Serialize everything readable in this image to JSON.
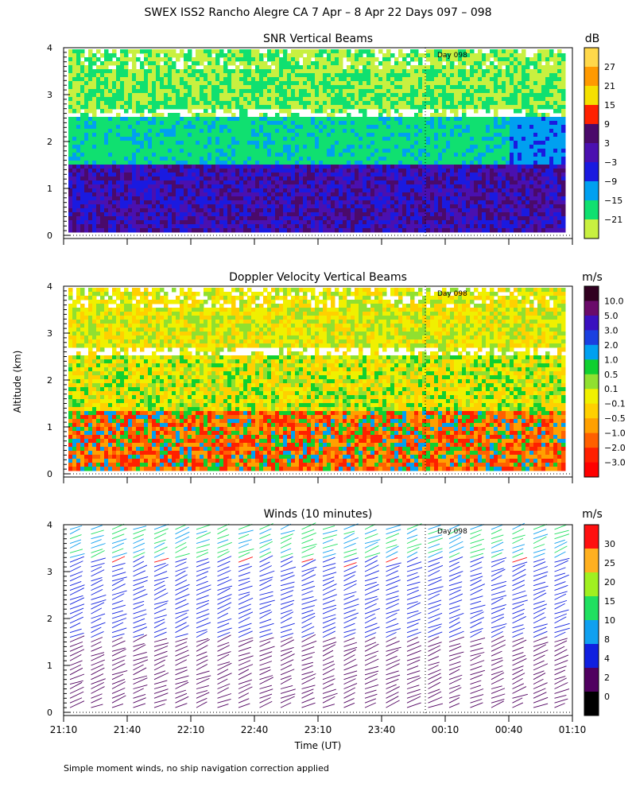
{
  "page": {
    "main_title": "SWEX ISS2 Rancho Alegre CA    7 Apr –   8 Apr 22 Days 097 – 098",
    "ylabel": "Altitude (km)",
    "xlabel": "Time (UT)",
    "footnote": "Simple moment winds, no ship navigation correction applied",
    "day_marker": "Day 098"
  },
  "chart_data": [
    {
      "type": "heatmap",
      "title": "SNR Vertical Beams",
      "y_ticks": [
        "0",
        "1",
        "2",
        "3",
        "4"
      ],
      "ylim": [
        0,
        4
      ],
      "colorbar": {
        "unit": "dB",
        "labels": [
          "27",
          "21",
          "15",
          "9",
          "3",
          "−3",
          "−9",
          "−15",
          "−21"
        ],
        "colors": [
          "#ffd84a",
          "#ff9a00",
          "#f5e000",
          "#ff2200",
          "#4a0a6a",
          "#4a10b0",
          "#1a1ae0",
          "#00a0f0",
          "#10e070",
          "#c8f040"
        ]
      },
      "structure": [
        {
          "alt_km": "0.1–1.6",
          "level": "−3 to 9 dB"
        },
        {
          "alt_km": "1.6–2.6",
          "level": "−15 to −9 dB"
        },
        {
          "alt_km": "2.6–4.0",
          "level": "−21 to −9 dB"
        }
      ]
    },
    {
      "type": "heatmap",
      "title": "Doppler Velocity Vertical Beams",
      "y_ticks": [
        "0",
        "1",
        "2",
        "3",
        "4"
      ],
      "ylim": [
        0,
        4
      ],
      "colorbar": {
        "unit": "m/s",
        "labels": [
          "10.0",
          "5.0",
          "3.0",
          "2.0",
          "1.0",
          "0.5",
          "0.1",
          "−0.1",
          "−0.5",
          "−1.0",
          "−2.0",
          "−3.0"
        ],
        "colors": [
          "#300020",
          "#6a0a6a",
          "#3a10c0",
          "#1a40e0",
          "#00a0f0",
          "#10d030",
          "#90e030",
          "#f0f000",
          "#ffd000",
          "#ffa000",
          "#ff6000",
          "#ff2000",
          "#ff0000"
        ]
      }
    },
    {
      "type": "wind_barbs",
      "title": "Winds (10 minutes)",
      "y_ticks": [
        "0",
        "1",
        "2",
        "3",
        "4"
      ],
      "ylim": [
        0,
        4
      ],
      "x_ticks": [
        "21:10",
        "21:40",
        "22:10",
        "22:40",
        "23:10",
        "23:40",
        "00:10",
        "00:40",
        "01:10"
      ],
      "colorbar": {
        "unit": "m/s",
        "labels": [
          "30",
          "25",
          "20",
          "15",
          "10",
          "8",
          "4",
          "2",
          "0"
        ],
        "colors": [
          "#ff1010",
          "#ffb020",
          "#a0f020",
          "#20e060",
          "#10a0f0",
          "#1020e0",
          "#500060",
          "#000000"
        ]
      }
    }
  ]
}
